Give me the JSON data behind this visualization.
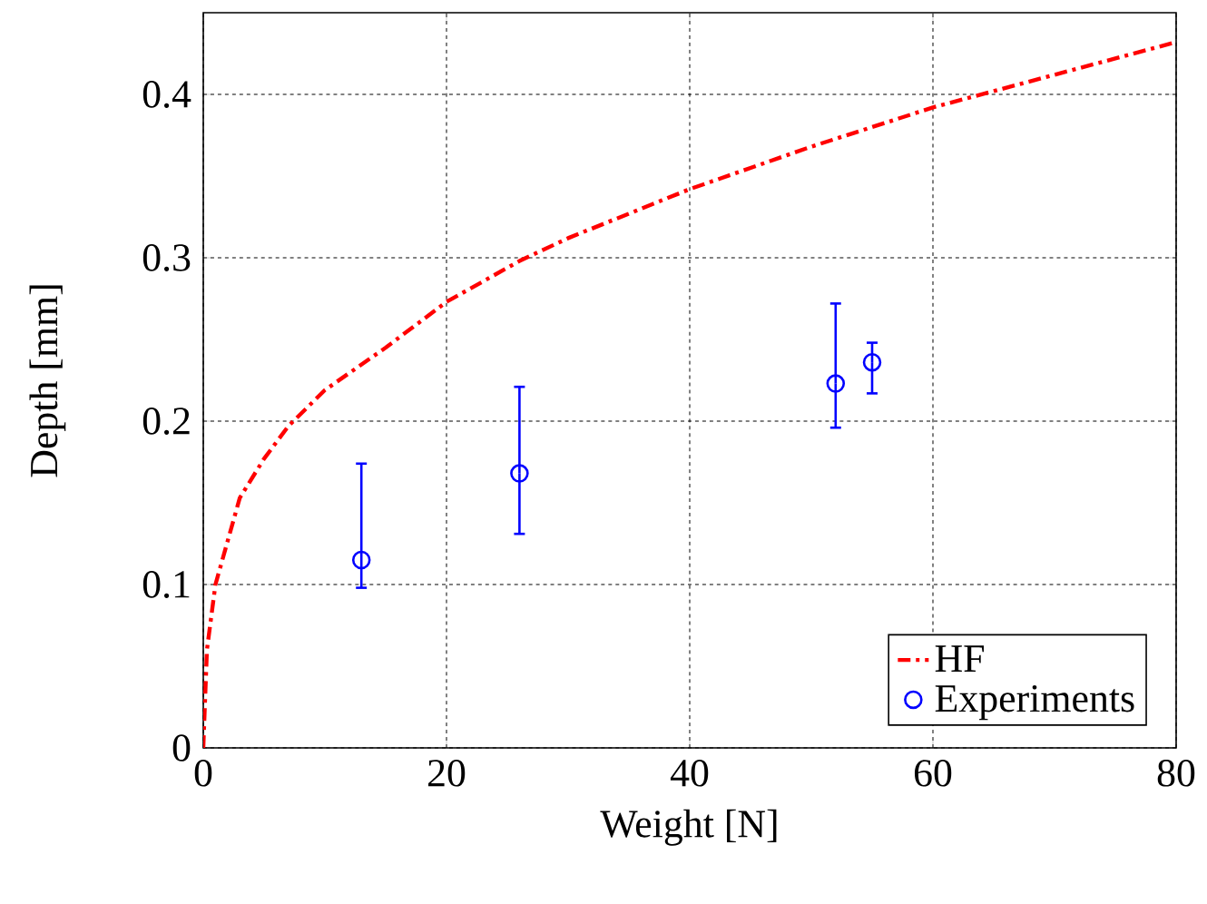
{
  "chart_data": {
    "type": "line",
    "xlabel": "Weight [N]",
    "ylabel": "Depth [mm]",
    "xlim": [
      0,
      80
    ],
    "ylim": [
      0,
      0.45
    ],
    "xticks": [
      0,
      20,
      40,
      60,
      80
    ],
    "yticks": [
      0,
      0.1,
      0.2,
      0.3,
      0.4
    ],
    "grid": true,
    "legend": "bottom right",
    "series": [
      {
        "name": "HF",
        "color": "#ff0000",
        "line_style": "dashdot",
        "marker": "none",
        "x": [
          0,
          0.3,
          1,
          3,
          5,
          7,
          10,
          15,
          20,
          26,
          30,
          40,
          50,
          60,
          70,
          80
        ],
        "values": [
          0,
          0.06,
          0.1,
          0.153,
          0.177,
          0.197,
          0.219,
          0.245,
          0.273,
          0.298,
          0.312,
          0.342,
          0.368,
          0.392,
          0.412,
          0.432
        ]
      },
      {
        "name": "Experiments",
        "type": "scatter",
        "color": "#0000ff",
        "marker": "circle",
        "x": [
          13,
          26,
          52,
          55
        ],
        "values": [
          0.115,
          0.168,
          0.223,
          0.236
        ],
        "errors": [
          [
            0.098,
            0.174
          ],
          [
            0.131,
            0.221
          ],
          [
            0.196,
            0.272
          ],
          [
            0.217,
            0.248
          ]
        ]
      }
    ]
  }
}
